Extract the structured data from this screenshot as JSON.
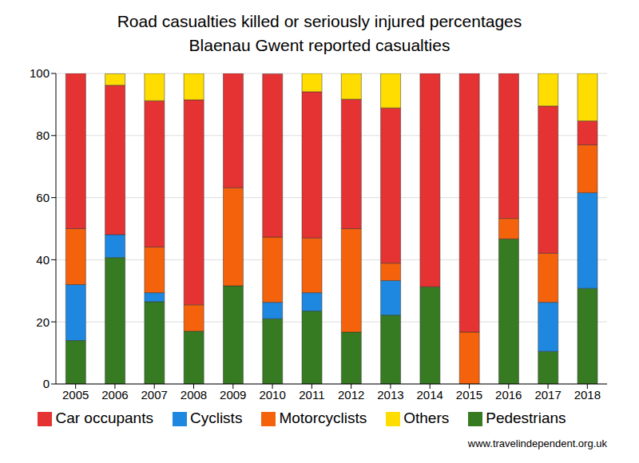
{
  "chart_data": {
    "type": "bar",
    "title": "Road casualties killed or seriously injured percentages",
    "subtitle": "Blaenau Gwent reported casualties",
    "source": "www.travelindependent.org.uk",
    "categories": [
      "2005",
      "2006",
      "2007",
      "2008",
      "2009",
      "2010",
      "2011",
      "2012",
      "2013",
      "2014",
      "2015",
      "2016",
      "2017",
      "2018"
    ],
    "stacked": true,
    "grid": true,
    "legend": "bottom",
    "ylim": [
      0,
      100
    ],
    "yticks": [
      0,
      20,
      40,
      60,
      80,
      100
    ],
    "series": [
      {
        "name": "Pedestrians",
        "color": "#367a22",
        "values": [
          14,
          40.7,
          26.5,
          17,
          31.6,
          21,
          23.5,
          16.7,
          22.2,
          31.3,
          0,
          46.7,
          10.5,
          30.8
        ]
      },
      {
        "name": "Cyclists",
        "color": "#1e88e0",
        "values": [
          18,
          7.4,
          2.9,
          0,
          0,
          5.3,
          5.9,
          0,
          11.1,
          0,
          0,
          0,
          15.8,
          30.8
        ]
      },
      {
        "name": "Motorcyclists",
        "color": "#f5620c",
        "values": [
          18,
          0,
          14.7,
          8.5,
          31.6,
          21,
          17.6,
          33.3,
          5.6,
          0,
          16.7,
          6.6,
          15.8,
          15.4
        ]
      },
      {
        "name": "Car occupants",
        "color": "#e53333",
        "values": [
          50,
          48.1,
          47.1,
          66,
          36.8,
          52.6,
          47.1,
          41.7,
          50,
          68.7,
          83.3,
          46.7,
          47.4,
          7.7
        ]
      },
      {
        "name": "Others",
        "color": "#ffdd00",
        "values": [
          0,
          3.7,
          8.8,
          8.5,
          0,
          0,
          5.9,
          8.3,
          11.1,
          0,
          0,
          0,
          10.5,
          15.3
        ]
      }
    ]
  }
}
